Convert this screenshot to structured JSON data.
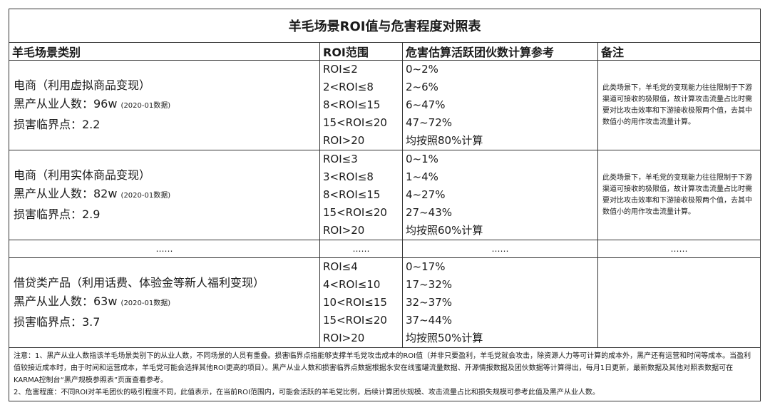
{
  "title": "羊毛场景ROI值与危害程度对照表",
  "headers": [
    "羊毛场景类别",
    "ROI范围",
    "危害估算活跃团伙数计算参考",
    "备注"
  ],
  "rows": [
    {
      "category": "电商（利用虚拟商品变现）",
      "workers_label": "黑产从业人数：96w",
      "workers_note": "(2020-01数据)",
      "threshold": "损害临界点：2.2",
      "roi": [
        "ROI≤2",
        "2<ROI≤8",
        "8<ROI≤15",
        "15<ROI≤20",
        "ROI>20"
      ],
      "hazard": [
        "0~2%",
        "2~6%",
        "6~47%",
        "47~72%",
        "均按照80%计算"
      ],
      "remark": "此类场景下，羊毛党的变现能力往往限制于下游渠道可接收的极限值，故计算攻击流量占比时需要对比攻击效率和下游接收极限两个值，去其中数值小的用作攻击流量计算。"
    },
    {
      "category": "电商（利用实体商品变现）",
      "workers_label": "黑产从业人数：82w",
      "workers_note": "(2020-01数据)",
      "threshold": "损害临界点：2.9",
      "roi": [
        "ROI≤3",
        "3<ROI≤8",
        "8<ROI≤15",
        "15<ROI≤20",
        "ROI>20"
      ],
      "hazard": [
        "0~1%",
        "1~4%",
        "4~27%",
        "27~43%",
        "均按照60%计算"
      ],
      "remark": "此类场景下，羊毛党的变现能力往往限制于下游渠道可接收的极限值，故计算攻击流量占比时需要对比攻击效率和下游接收极限两个值，去其中数值小的用作攻击流量计算。"
    },
    {
      "category": "借贷类产品（利用话费、体验金等新人福利变现）",
      "workers_label": "黑产从业人数：63w",
      "workers_note": "(2020-01数据)",
      "threshold": "损害临界点：3.7",
      "roi": [
        "ROI≤4",
        "4<ROI≤10",
        "10<ROI≤15",
        "15<ROI≤20",
        "ROI>20"
      ],
      "hazard": [
        "0~17%",
        "17~32%",
        "32~37%",
        "37~44%",
        "均按照50%计算"
      ],
      "remark": ""
    }
  ],
  "ellipsis": "……",
  "footnote1": "注意：1、黑产从业人数指该羊毛场景类别下的从业人数，不同场景的人员有重叠。损害临界点指能够支撑羊毛党攻击成本的ROI值（并非只要盈利，羊毛党就会攻击，除资源人力等可计算的成本外，黑产还有运营和时间等成本。当盈利值较接近成本时，由于时间和运营成本，羊毛党可能会选择其他ROI更高的项目）。黑产从业人数和损害临界点数据根据永安在线蜜罐流量数据、开源情报数据及团伙数据等计算得出，每月1日更新，最新数据及其他对照表数据可在KARMA控制台“黑产规模参照表”页面查看参考。",
  "footnote2": "2、危害程度：不同ROI对羊毛团伙的吸引程度不同，此值表示，在当前ROI范围内，可能会活跃的羊毛党比例，后续计算团伙规模、攻击流量占比和损失规模可参考此值及黑产从业人数。"
}
